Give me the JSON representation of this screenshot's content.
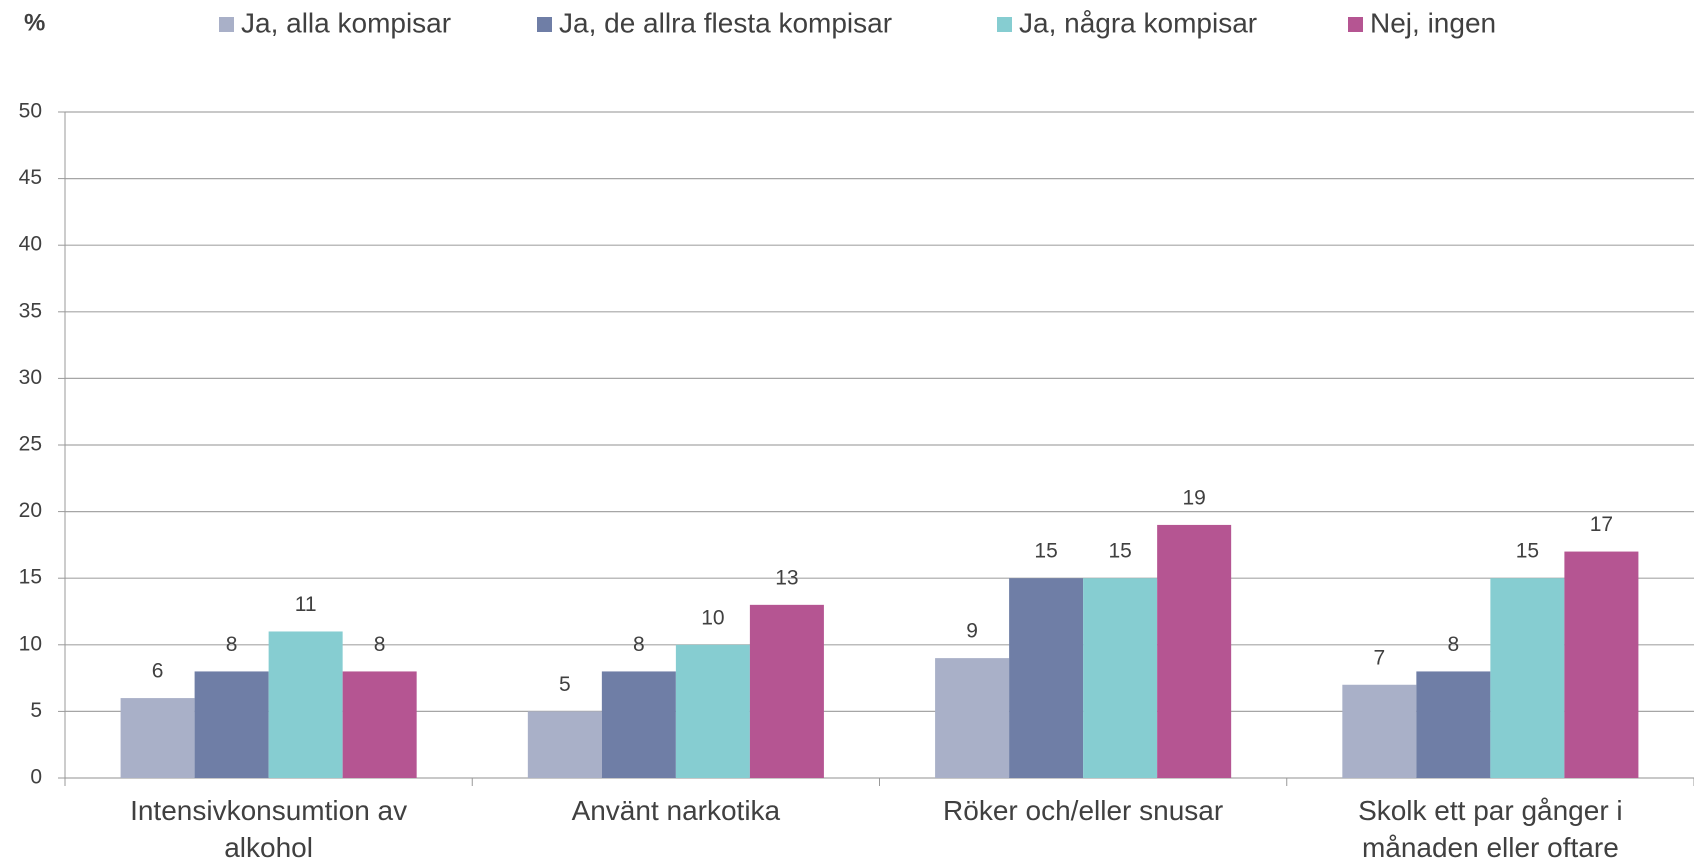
{
  "chart_data": {
    "type": "bar",
    "y_label": "%",
    "categories": [
      "Intensivkonsumtion av alkohol",
      "Använt narkotika",
      "Röker och/eller snusar",
      "Skolk ett par gånger i månaden eller oftare"
    ],
    "series": [
      {
        "name": "Ja, alla kompisar",
        "color": "#a9b0c8",
        "values": [
          6,
          5,
          9,
          7
        ]
      },
      {
        "name": "Ja, de allra flesta kompisar",
        "color": "#6f7ea6",
        "values": [
          8,
          8,
          15,
          8
        ]
      },
      {
        "name": "Ja, några kompisar",
        "color": "#86cdd1",
        "values": [
          11,
          10,
          15,
          15
        ]
      },
      {
        "name": "Nej, ingen",
        "color": "#b55592",
        "values": [
          8,
          13,
          19,
          17
        ]
      }
    ],
    "ylim": [
      0,
      50
    ],
    "yticks": [
      0,
      5,
      10,
      15,
      20,
      25,
      30,
      35,
      40,
      45,
      50
    ],
    "grid": true,
    "legend": "top"
  }
}
